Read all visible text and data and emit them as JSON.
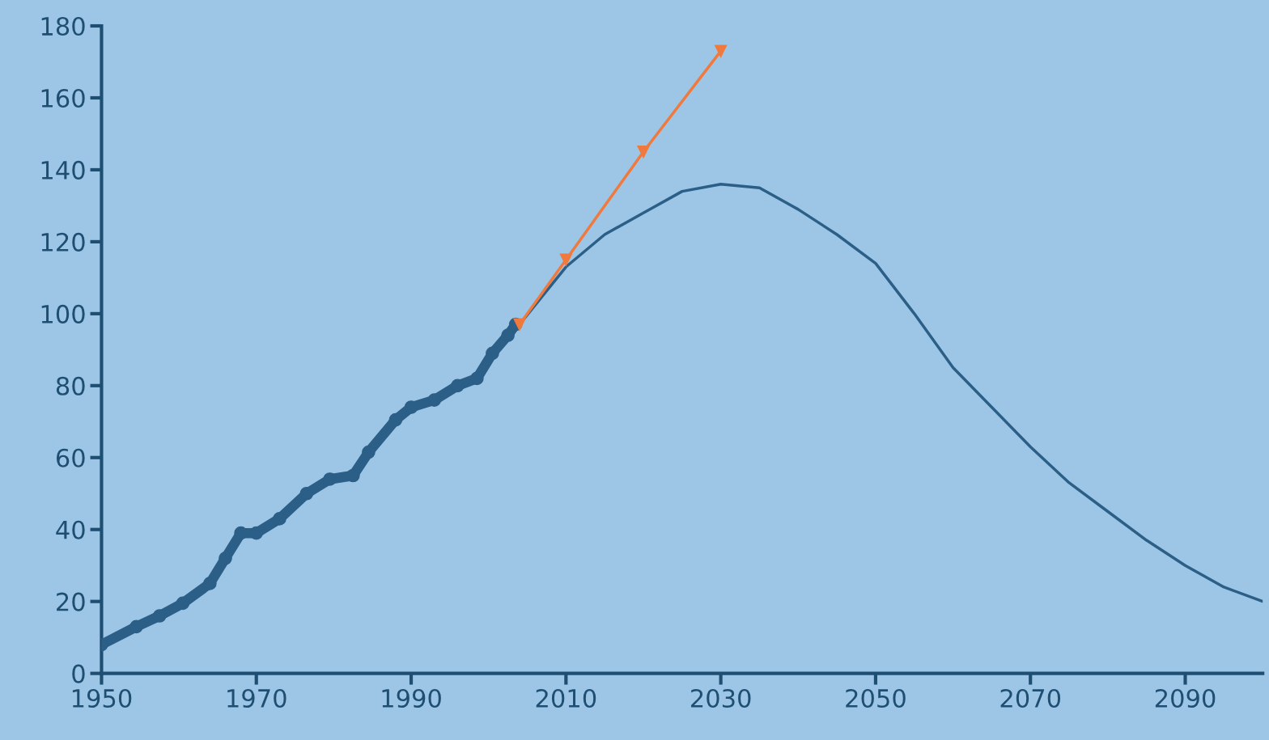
{
  "chart_data": {
    "type": "line",
    "xlim": [
      1950,
      2100
    ],
    "xticks": [
      1950,
      1970,
      1990,
      2010,
      2030,
      2050,
      2070,
      2090
    ],
    "ylim": [
      0,
      180
    ],
    "yticks": [
      0,
      20,
      40,
      60,
      80,
      100,
      120,
      140,
      160,
      180
    ],
    "grid": false,
    "legend": false,
    "series": [
      {
        "color": "#2b5f87",
        "marker": "none",
        "line_style": "solid",
        "x": [
          2004,
          2010,
          2015,
          2020,
          2025,
          2030,
          2035,
          2040,
          2045,
          2050,
          2055,
          2060,
          2065,
          2070,
          2075,
          2080,
          2085,
          2090,
          2095,
          2100
        ],
        "values": [
          97,
          113,
          122,
          128,
          134,
          136,
          135,
          129,
          122,
          114,
          100,
          85,
          74,
          63,
          53,
          45,
          37,
          30,
          24,
          20
        ]
      },
      {
        "color": "#2b5f87",
        "marker": "circle",
        "line_style": "solid",
        "x": [
          1950,
          1954.5,
          1957.5,
          1960.5,
          1964,
          1966,
          1968,
          1970,
          1973,
          1976.5,
          1979.5,
          1982.5,
          1984.5,
          1988,
          1990,
          1993,
          1996,
          1998.5,
          2000.5,
          2002.5,
          2003.5
        ],
        "values": [
          8,
          13,
          16,
          19.5,
          25,
          32,
          39,
          39,
          43,
          50,
          54,
          55,
          61.5,
          70.5,
          74,
          76,
          80,
          82,
          89,
          94,
          97
        ]
      },
      {
        "color": "#f07a3e",
        "marker": "triangle",
        "line_style": "solid",
        "x": [
          2004,
          2010,
          2020,
          2030
        ],
        "values": [
          97,
          115,
          145,
          173
        ]
      }
    ]
  }
}
